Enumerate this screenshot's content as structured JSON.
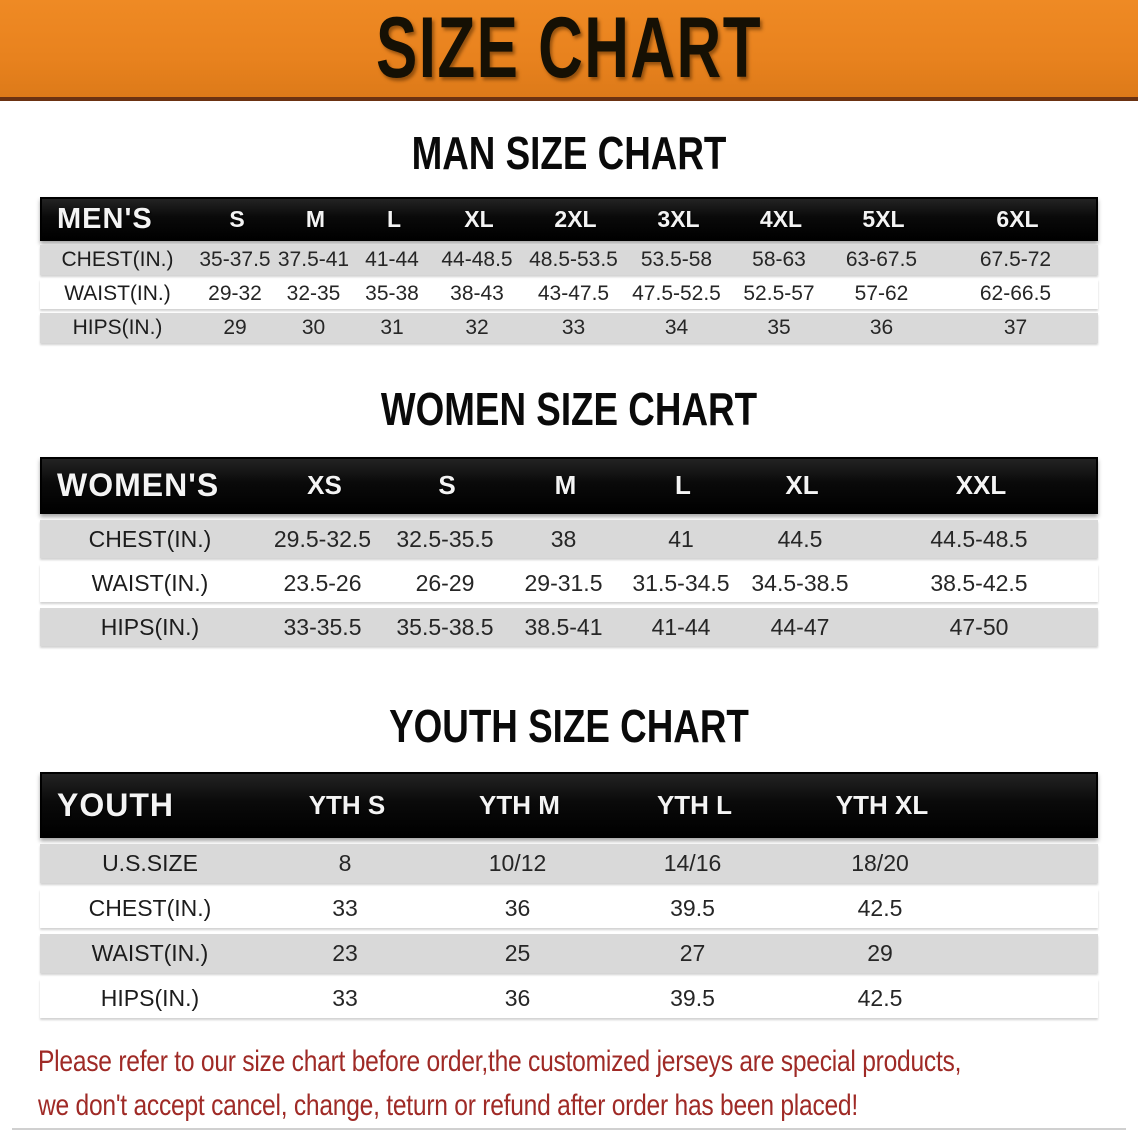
{
  "banner": {
    "title": "SIZE CHART"
  },
  "chart_data": [
    {
      "type": "table",
      "title": "MAN SIZE CHART",
      "group_label": "MEN'S",
      "columns": [
        "S",
        "M",
        "L",
        "XL",
        "2XL",
        "3XL",
        "4XL",
        "5XL",
        "6XL"
      ],
      "rows": [
        {
          "label": "CHEST(IN.)",
          "values": [
            "35-37.5",
            "37.5-41",
            "41-44",
            "44-48.5",
            "48.5-53.5",
            "53.5-58",
            "58-63",
            "63-67.5",
            "67.5-72"
          ]
        },
        {
          "label": "WAIST(IN.)",
          "values": [
            "29-32",
            "32-35",
            "35-38",
            "38-43",
            "43-47.5",
            "47.5-52.5",
            "52.5-57",
            "57-62",
            "62-66.5"
          ]
        },
        {
          "label": "HIPS(IN.)",
          "values": [
            "29",
            "30",
            "31",
            "32",
            "33",
            "34",
            "35",
            "36",
            "37"
          ]
        }
      ]
    },
    {
      "type": "table",
      "title": "WOMEN SIZE CHART",
      "group_label": "WOMEN'S",
      "columns": [
        "XS",
        "S",
        "M",
        "L",
        "XL",
        "XXL"
      ],
      "rows": [
        {
          "label": "CHEST(IN.)",
          "values": [
            "29.5-32.5",
            "32.5-35.5",
            "38",
            "41",
            "44.5",
            "44.5-48.5"
          ]
        },
        {
          "label": "WAIST(IN.)",
          "values": [
            "23.5-26",
            "26-29",
            "29-31.5",
            "31.5-34.5",
            "34.5-38.5",
            "38.5-42.5"
          ]
        },
        {
          "label": "HIPS(IN.)",
          "values": [
            "33-35.5",
            "35.5-38.5",
            "38.5-41",
            "41-44",
            "44-47",
            "47-50"
          ]
        }
      ]
    },
    {
      "type": "table",
      "title": "YOUTH SIZE CHART",
      "group_label": "YOUTH",
      "columns": [
        "YTH S",
        "YTH M",
        "YTH L",
        "YTH XL"
      ],
      "rows": [
        {
          "label": "U.S.SIZE",
          "values": [
            "8",
            "10/12",
            "14/16",
            "18/20"
          ]
        },
        {
          "label": "CHEST(IN.)",
          "values": [
            "33",
            "36",
            "39.5",
            "42.5"
          ]
        },
        {
          "label": "WAIST(IN.)",
          "values": [
            "23",
            "25",
            "27",
            "29"
          ]
        },
        {
          "label": "HIPS(IN.)",
          "values": [
            "33",
            "36",
            "39.5",
            "42.5"
          ]
        }
      ]
    }
  ],
  "disclaimer": {
    "line1": "Please refer to our size chart before order,the customized jerseys are special products,",
    "line2": "we don't accept cancel, change, teturn or refund after order has been placed!"
  },
  "colors": {
    "banner_orange": "#e8821e",
    "banner_edge": "#6b3212",
    "header_black": "#0d0d0d",
    "row_gray": "#d9d9d9",
    "row_white": "#ffffff",
    "disclaimer_red": "#9f2a26"
  }
}
